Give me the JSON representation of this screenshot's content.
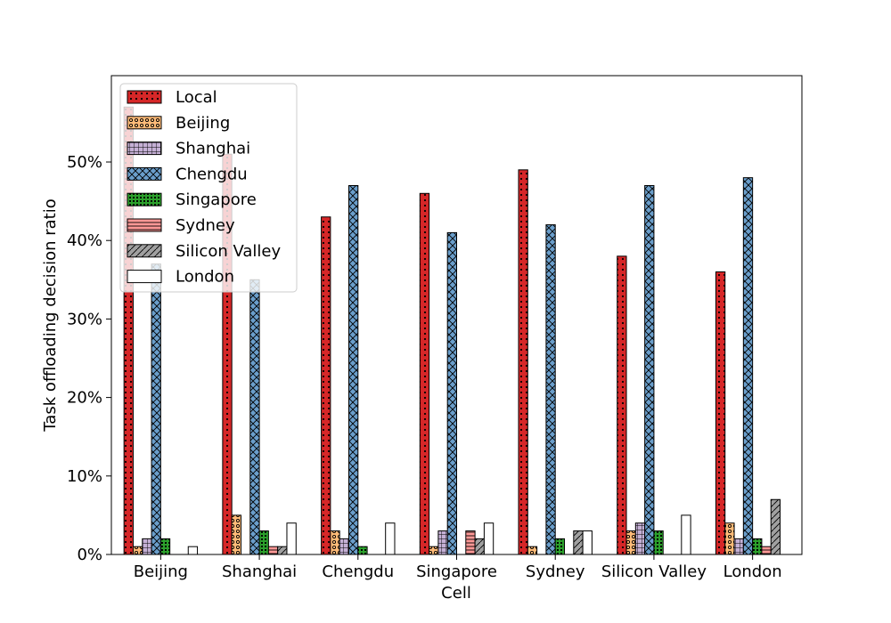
{
  "chart_data": {
    "type": "bar",
    "title": "",
    "xlabel": "Cell",
    "ylabel": "Task offloading decision ratio",
    "ylim": [
      0,
      61
    ],
    "y_ticks": [
      0,
      10,
      20,
      30,
      40,
      50
    ],
    "y_tick_labels": [
      "0%",
      "10%",
      "20%",
      "30%",
      "40%",
      "50%"
    ],
    "grid": false,
    "legend_position": "top-left",
    "categories": [
      "Beijing",
      "Shanghai",
      "Chengdu",
      "Singapore",
      "Sydney",
      "Silicon Valley",
      "London"
    ],
    "series": [
      {
        "name": "Local",
        "color": "#d62728",
        "pattern": "dots",
        "values": [
          57,
          51,
          43,
          46,
          49,
          38,
          36
        ]
      },
      {
        "name": "Beijing",
        "color": "#ffbb78",
        "pattern": "circles",
        "values": [
          1,
          5,
          3,
          1,
          1,
          3,
          4
        ]
      },
      {
        "name": "Shanghai",
        "color": "#c5b0d5",
        "pattern": "grid",
        "values": [
          2,
          0,
          2,
          3,
          0,
          4,
          2
        ]
      },
      {
        "name": "Chengdu",
        "color": "#6a9ecb",
        "pattern": "crosshatch",
        "values": [
          37,
          35,
          47,
          41,
          42,
          47,
          48
        ]
      },
      {
        "name": "Singapore",
        "color": "#2ca02c",
        "pattern": "denseDots",
        "values": [
          2,
          3,
          1,
          0,
          2,
          3,
          2
        ]
      },
      {
        "name": "Sydney",
        "color": "#ff9896",
        "pattern": "hlines",
        "values": [
          0,
          1,
          0,
          3,
          0,
          0,
          1
        ]
      },
      {
        "name": "Silicon Valley",
        "color": "#a0a0a0",
        "pattern": "diag",
        "values": [
          0,
          1,
          0,
          2,
          3,
          0,
          7
        ]
      },
      {
        "name": "London",
        "color": "#ffffff",
        "pattern": "none",
        "values": [
          1,
          4,
          4,
          4,
          3,
          5,
          0
        ]
      }
    ]
  }
}
